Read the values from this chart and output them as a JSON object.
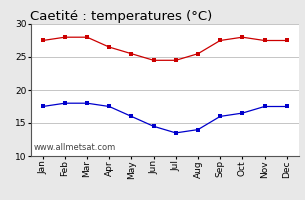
{
  "title": "Caetité : temperatures (°C)",
  "months": [
    "Jan",
    "Feb",
    "Mar",
    "Apr",
    "May",
    "Jun",
    "Jul",
    "Aug",
    "Sep",
    "Oct",
    "Nov",
    "Dec"
  ],
  "max_temps": [
    27.5,
    28.0,
    28.0,
    26.5,
    25.5,
    24.5,
    24.5,
    25.5,
    27.5,
    28.0,
    27.5,
    27.5
  ],
  "min_temps": [
    17.5,
    18.0,
    18.0,
    17.5,
    16.0,
    14.5,
    13.5,
    14.0,
    16.0,
    16.5,
    17.5,
    17.5
  ],
  "max_color": "#cc0000",
  "min_color": "#0000cc",
  "background_color": "#e8e8e8",
  "plot_bg_color": "#ffffff",
  "grid_color": "#bbbbbb",
  "ylim": [
    10,
    30
  ],
  "yticks": [
    10,
    15,
    20,
    25,
    30
  ],
  "watermark": "www.allmetsat.com",
  "title_fontsize": 9.5,
  "tick_fontsize": 6.5,
  "watermark_fontsize": 6.0
}
